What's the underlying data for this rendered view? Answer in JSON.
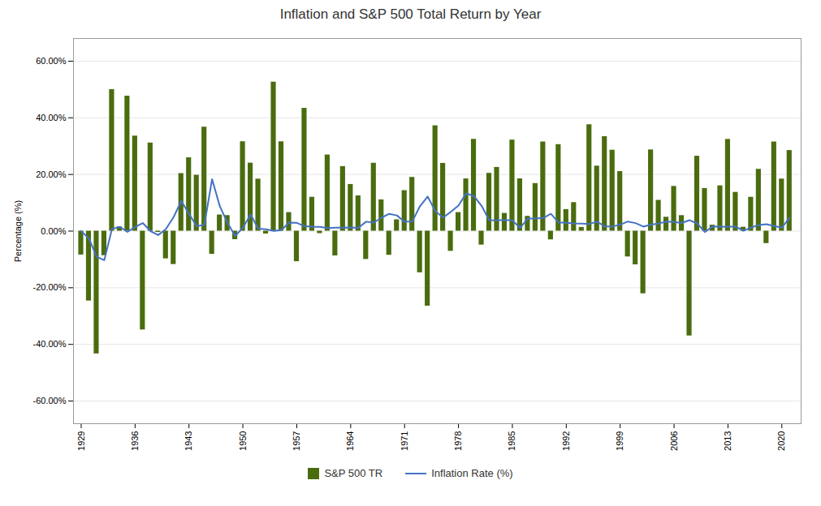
{
  "chart_data": {
    "type": "bar",
    "title": "Inflation and S&P 500 Total Return by Year",
    "ylabel": "Percentage (%)",
    "x": [
      1929,
      1930,
      1931,
      1932,
      1933,
      1934,
      1935,
      1936,
      1937,
      1938,
      1939,
      1940,
      1941,
      1942,
      1943,
      1944,
      1945,
      1946,
      1947,
      1948,
      1949,
      1950,
      1951,
      1952,
      1953,
      1954,
      1955,
      1956,
      1957,
      1958,
      1959,
      1960,
      1961,
      1962,
      1963,
      1964,
      1965,
      1966,
      1967,
      1968,
      1969,
      1970,
      1971,
      1972,
      1973,
      1974,
      1975,
      1976,
      1977,
      1978,
      1979,
      1980,
      1981,
      1982,
      1983,
      1984,
      1985,
      1986,
      1987,
      1988,
      1989,
      1990,
      1991,
      1992,
      1993,
      1994,
      1995,
      1996,
      1997,
      1998,
      1999,
      2000,
      2001,
      2002,
      2003,
      2004,
      2005,
      2006,
      2007,
      2008,
      2009,
      2010,
      2011,
      2012,
      2013,
      2014,
      2015,
      2016,
      2017,
      2018,
      2019,
      2020,
      2021
    ],
    "series": [
      {
        "name": "S&P 500 TR",
        "type": "bar",
        "color": "#4a6c0f",
        "values": [
          -0.0842,
          -0.2466,
          -0.4334,
          -0.0864,
          0.4998,
          0.0152,
          0.4767,
          0.3356,
          -0.3488,
          0.3112,
          -0.0043,
          -0.0977,
          -0.1178,
          0.2034,
          0.259,
          0.1975,
          0.3672,
          -0.0817,
          0.0571,
          0.055,
          -0.0299,
          0.3158,
          0.2402,
          0.1837,
          -0.0099,
          0.5262,
          0.3156,
          0.0656,
          -0.1077,
          0.4336,
          0.1196,
          -0.0085,
          0.2689,
          -0.0873,
          0.228,
          0.1648,
          0.1245,
          -0.0999,
          0.2398,
          0.1106,
          -0.085,
          0.0401,
          0.1431,
          0.1898,
          -0.1469,
          -0.2647,
          0.372,
          0.2393,
          -0.0711,
          0.0656,
          0.1844,
          0.3242,
          -0.0491,
          0.2041,
          0.2251,
          0.0627,
          0.3216,
          0.1847,
          0.0523,
          0.1681,
          0.3149,
          -0.0306,
          0.3055,
          0.0762,
          0.1008,
          0.0132,
          0.3758,
          0.2296,
          0.3336,
          0.2858,
          0.2104,
          -0.091,
          -0.1189,
          -0.221,
          0.2868,
          0.1088,
          0.0491,
          0.1579,
          0.0549,
          -0.37,
          0.2646,
          0.1506,
          0.0211,
          0.16,
          0.3239,
          0.1369,
          0.0138,
          0.1196,
          0.2183,
          -0.0438,
          0.3149,
          0.184,
          0.2847
        ]
      },
      {
        "name": "Inflation Rate (%)",
        "type": "line",
        "color": "#4472c4",
        "values": [
          0.0,
          -0.0258,
          -0.0904,
          -0.1027,
          0.0076,
          0.0152,
          -0.0029,
          0.0149,
          0.0285,
          0.0,
          -0.014,
          0.0071,
          0.0493,
          0.1066,
          0.0606,
          0.0175,
          0.0225,
          0.1833,
          0.0882,
          0.0293,
          -0.0171,
          0.0117,
          0.0588,
          0.0088,
          0.0063,
          0.0005,
          0.0037,
          0.03,
          0.029,
          0.0176,
          0.015,
          0.0148,
          0.0107,
          0.012,
          0.0122,
          0.0131,
          0.0117,
          0.0333,
          0.0301,
          0.0472,
          0.0611,
          0.0555,
          0.0327,
          0.0341,
          0.088,
          0.122,
          0.0701,
          0.0481,
          0.0677,
          0.0903,
          0.1331,
          0.124,
          0.0894,
          0.0387,
          0.038,
          0.0395,
          0.0377,
          0.0113,
          0.0441,
          0.0442,
          0.0465,
          0.0611,
          0.0306,
          0.029,
          0.0275,
          0.0267,
          0.0254,
          0.0332,
          0.017,
          0.0161,
          0.0227,
          0.0338,
          0.0283,
          0.0159,
          0.0227,
          0.0268,
          0.0339,
          0.0323,
          0.0285,
          0.0385,
          0.0272,
          -0.0034,
          0.0164,
          0.0157,
          0.015,
          0.0162,
          0.0012,
          0.0126,
          0.0213,
          0.0244,
          0.0181,
          0.0123,
          0.047
        ]
      }
    ],
    "xlim": [
      1928.0,
      2022.5
    ],
    "xticks": [
      1929,
      1936,
      1943,
      1950,
      1957,
      1964,
      1971,
      1978,
      1985,
      1992,
      1999,
      2006,
      2013,
      2020
    ],
    "ylim": [
      -0.68,
      0.68
    ],
    "yticks": [
      {
        "value": -0.6,
        "label": "-60.00%"
      },
      {
        "value": -0.4,
        "label": "-40.00%"
      },
      {
        "value": -0.2,
        "label": "-20.00%"
      },
      {
        "value": 0.0,
        "label": "0.00%"
      },
      {
        "value": 0.2,
        "label": "20.00%"
      },
      {
        "value": 0.4,
        "label": "40.00%"
      },
      {
        "value": 0.6,
        "label": "60.00%"
      }
    ],
    "grid": true,
    "legend": "bottom"
  }
}
